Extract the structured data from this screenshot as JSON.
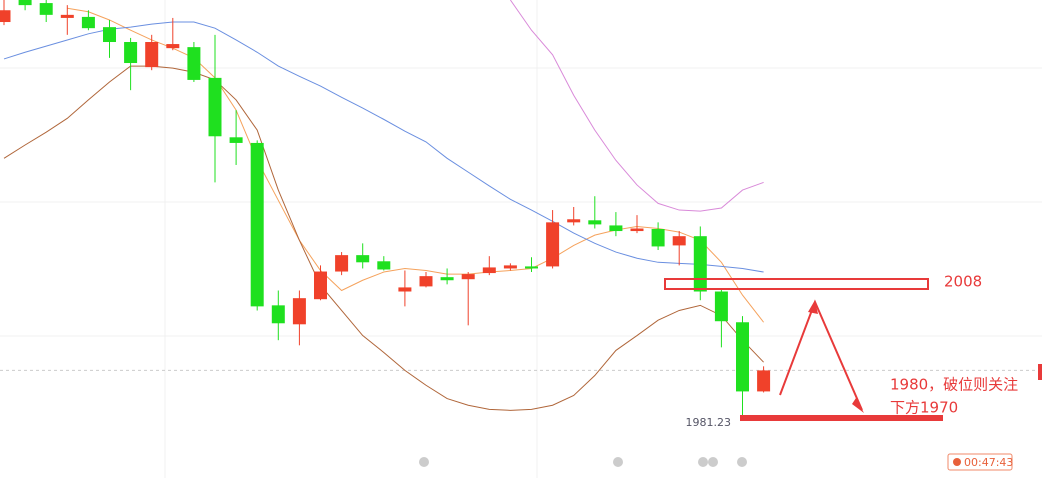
{
  "chart_data": {
    "type": "candlestick",
    "categories": [
      null,
      null,
      null,
      null,
      null,
      null,
      null,
      null,
      null,
      null,
      null,
      null,
      null,
      null,
      null,
      null,
      null,
      null,
      null,
      null,
      null,
      null,
      null,
      null,
      null,
      null,
      null,
      null,
      null,
      null,
      null,
      null,
      null,
      null,
      null,
      null,
      null
    ],
    "open": [
      2059.0,
      2063.3,
      2062.7,
      2059.8,
      2060.0,
      2058.0,
      2055.1,
      2050.2,
      2053.9,
      2054.1,
      2048.1,
      2036.5,
      2035.4,
      2003.7,
      2000.0,
      2004.9,
      2010.3,
      2013.5,
      2012.3,
      2006.4,
      2007.4,
      2009.2,
      2008.8,
      2010.0,
      2010.9,
      2011.3,
      2011.3,
      2019.9,
      2020.3,
      2019.3,
      2018.2,
      2018.6,
      2015.4,
      2017.2,
      2006.4,
      2000.4,
      1986.9
    ],
    "high": [
      2063.3,
      2063.3,
      2063.3,
      2062.3,
      2061.3,
      2059.4,
      2055.9,
      2056.5,
      2059.8,
      2055.1,
      2056.5,
      2041.8,
      2035.9,
      2006.6,
      2006.6,
      2011.5,
      2014.1,
      2015.8,
      2013.3,
      2010.5,
      2010.2,
      2010.9,
      2010.2,
      2013.3,
      2011.9,
      2013.1,
      2022.3,
      2022.9,
      2025.0,
      2021.9,
      2021.3,
      2019.9,
      2018.2,
      2019.1,
      2007.0,
      2001.6,
      1991.8
    ],
    "low": [
      2058.4,
      2061.3,
      2059.0,
      2056.5,
      2057.4,
      2052.0,
      2045.7,
      2049.6,
      2053.5,
      2047.3,
      2027.7,
      2031.1,
      2002.7,
      1996.9,
      1995.9,
      2004.7,
      2009.6,
      2010.9,
      2010.5,
      2003.5,
      2007.2,
      2007.8,
      1999.8,
      2009.6,
      2010.5,
      2010.2,
      2010.9,
      2019.3,
      2018.7,
      2017.2,
      2017.8,
      2014.5,
      2011.5,
      2004.7,
      1995.5,
      1981.23,
      1986.7
    ],
    "close": [
      2061.3,
      2062.3,
      2060.4,
      2060.4,
      2057.8,
      2055.1,
      2051.0,
      2055.1,
      2054.7,
      2047.7,
      2036.7,
      2035.4,
      2003.5,
      2000.2,
      2005.1,
      2010.3,
      2013.5,
      2012.1,
      2010.7,
      2007.2,
      2009.4,
      2008.6,
      2009.8,
      2011.1,
      2011.5,
      2010.9,
      2019.9,
      2020.5,
      2019.5,
      2018.2,
      2018.7,
      2015.2,
      2017.2,
      2006.4,
      2000.6,
      1986.9,
      1991.0
    ],
    "up_color": "#f0412a",
    "down_color": "#1fe01f",
    "lines": [
      {
        "color": "#f5a25c",
        "values": [
          null,
          null,
          null,
          2061.7,
          2061.0,
          2059.4,
          2057.4,
          2055.5,
          2053.9,
          2052.0,
          2048.1,
          2041.8,
          2032.0,
          2024.2,
          2016.4,
          2010.5,
          2006.6,
          2008.6,
          2010.2,
          2010.9,
          2010.5,
          2009.8,
          2009.8,
          2010.2,
          2010.5,
          2010.9,
          2012.9,
          2015.4,
          2017.4,
          2018.4,
          2019.1,
          2018.7,
          2018.0,
          2016.4,
          2012.1,
          2005.7,
          2000.4
        ]
      },
      {
        "color": "#6a8fe0",
        "values": [
          2051.8,
          2053.1,
          2054.3,
          2055.5,
          2056.7,
          2057.6,
          2058.0,
          2058.6,
          2059.0,
          2059.0,
          2057.8,
          2055.5,
          2053.1,
          2050.4,
          2048.4,
          2046.5,
          2044.3,
          2042.2,
          2040.0,
          2037.7,
          2035.6,
          2032.4,
          2029.7,
          2027.0,
          2024.4,
          2022.3,
          2020.1,
          2017.8,
          2015.8,
          2014.1,
          2012.9,
          2012.1,
          2011.9,
          2011.7,
          2011.3,
          2010.9,
          2010.2
        ]
      },
      {
        "color": "#b0663a",
        "values": [
          2032.4,
          2035.0,
          2037.5,
          2040.2,
          2043.8,
          2047.3,
          2050.4,
          2050.4,
          2050.0,
          2049.2,
          2047.7,
          2043.8,
          2037.9,
          2026.2,
          2016.4,
          2007.6,
          2002.7,
          1997.8,
          1994.5,
          1991.0,
          1988.1,
          1985.5,
          1984.2,
          1983.4,
          1983.2,
          1983.4,
          1984.2,
          1986.1,
          1990.0,
          1994.9,
          1997.8,
          2000.8,
          2002.7,
          2003.7,
          2001.7,
          1996.9,
          1992.6
        ]
      },
      {
        "color": "#d98ad9",
        "values": [
          null,
          null,
          null,
          null,
          null,
          null,
          null,
          null,
          null,
          null,
          null,
          null,
          null,
          null,
          null,
          null,
          null,
          null,
          null,
          null,
          null,
          null,
          null,
          null,
          2063.3,
          2057.4,
          2052.6,
          2044.7,
          2037.9,
          2032.0,
          2027.2,
          2023.6,
          2022.3,
          2022.1,
          2022.7,
          2026.2,
          2027.7
        ]
      }
    ],
    "ylim": [
      1970,
      2063.3
    ],
    "annotations": [
      "2008",
      "1980，破位则关注",
      "下方1970",
      "1981.23"
    ],
    "timer": "00:47:43"
  }
}
